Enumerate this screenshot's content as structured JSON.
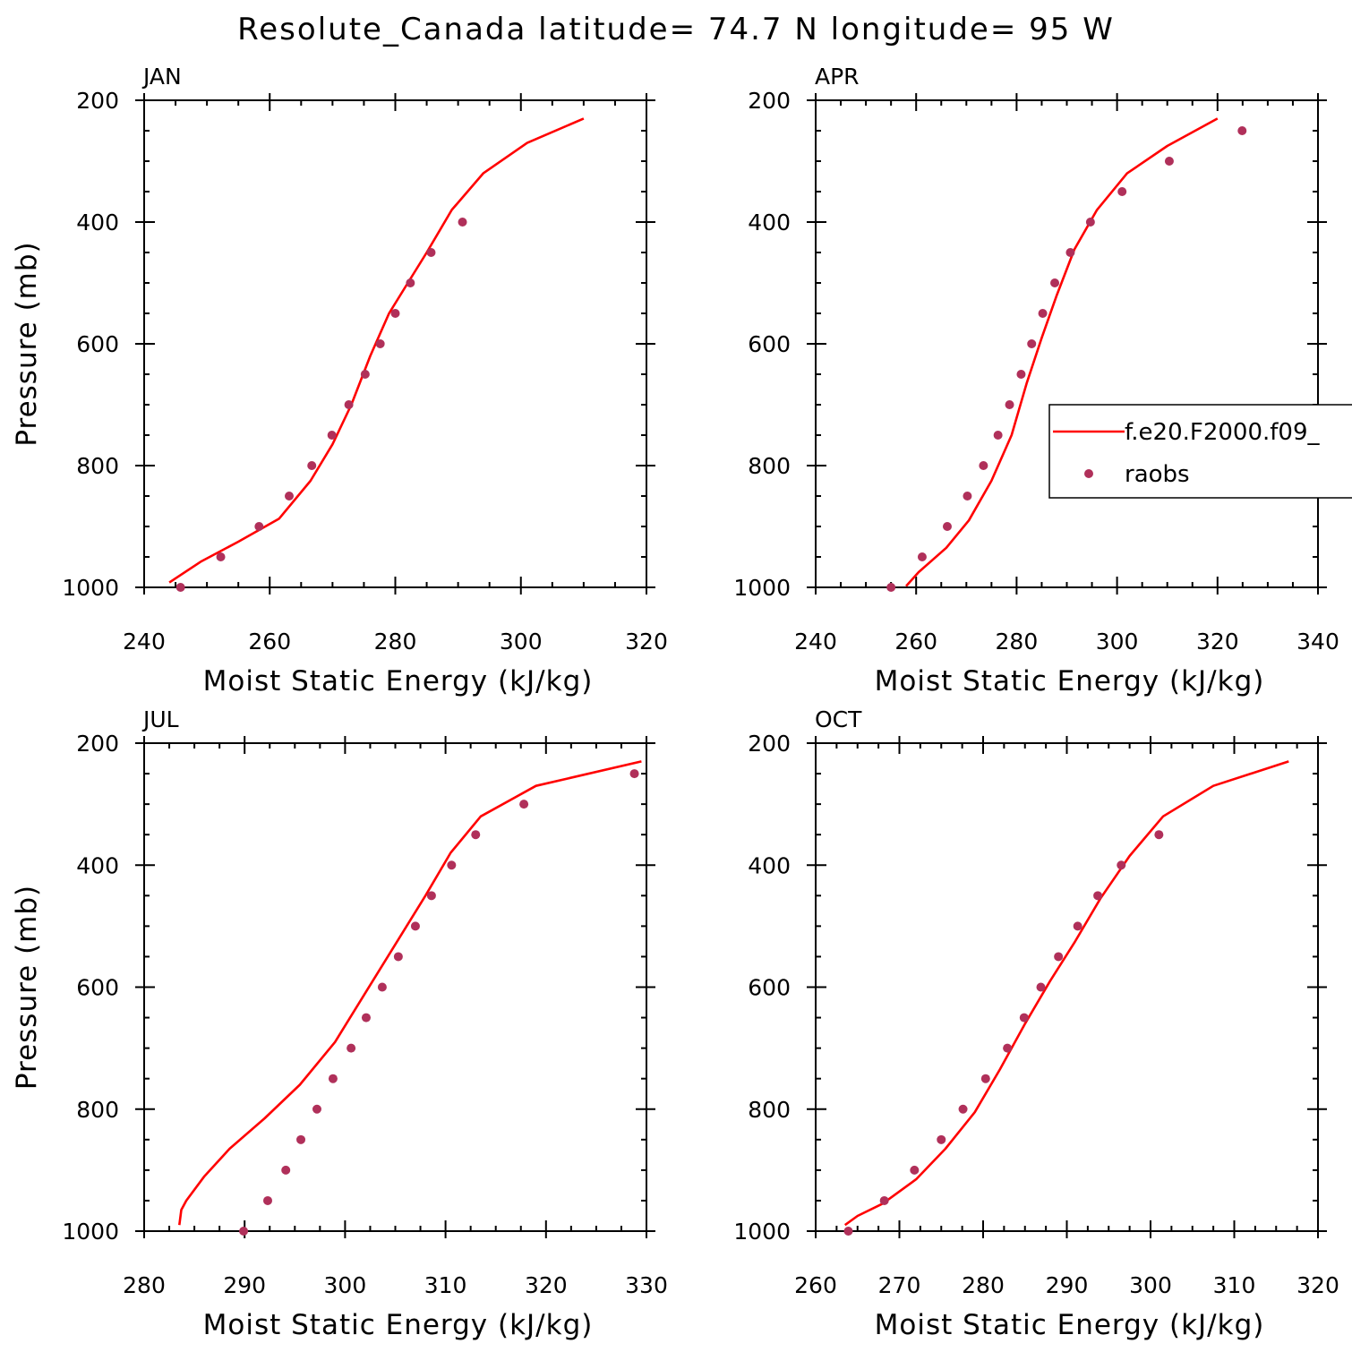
{
  "title": "Resolute_Canada  latitude= 74.7 N longitude= 95 W",
  "legend": {
    "model_label": "f.e20.F2000.f09_",
    "obs_label": "raobs",
    "placement": "right-middle of APR panel"
  },
  "colors": {
    "model_line": "#ff0000",
    "obs_marker": "#b0305a",
    "axes": "#000000"
  },
  "chart_data": [
    {
      "type": "line",
      "month": "JAN",
      "xlabel": "Moist Static Energy (kJ/kg)",
      "ylabel": "Pressure (mb)",
      "xlim": [
        240,
        320
      ],
      "ylim": [
        1000,
        200
      ],
      "xticks": [
        240,
        260,
        280,
        300,
        320
      ],
      "yticks": [
        200,
        400,
        600,
        800,
        1000
      ],
      "y_inverted": true,
      "series": [
        {
          "name": "f.e20.F2000.f09_",
          "style": "line",
          "x": [
            244.0,
            249.0,
            255.0,
            261.5,
            266.5,
            270.0,
            273.0,
            276.0,
            279.0,
            282.0,
            285.0,
            289.0,
            294.0,
            301.0,
            310.0
          ],
          "y": [
            992,
            958,
            925,
            887,
            825,
            765,
            700,
            620,
            550,
            500,
            450,
            380,
            320,
            270,
            230
          ]
        },
        {
          "name": "raobs",
          "style": "markers",
          "x": [
            245.8,
            252.2,
            258.3,
            263.1,
            266.7,
            269.9,
            272.6,
            275.2,
            277.6,
            280.0,
            282.4,
            285.7,
            290.7
          ],
          "y": [
            1000,
            950,
            900,
            850,
            800,
            750,
            700,
            650,
            600,
            550,
            500,
            450,
            400
          ]
        }
      ]
    },
    {
      "type": "line",
      "month": "APR",
      "xlabel": "Moist Static Energy (kJ/kg)",
      "ylabel": "",
      "xlim": [
        240,
        340
      ],
      "ylim": [
        1000,
        200
      ],
      "xticks": [
        240,
        260,
        280,
        300,
        320,
        340
      ],
      "yticks": [
        200,
        400,
        600,
        800,
        1000
      ],
      "y_inverted": true,
      "series": [
        {
          "name": "f.e20.F2000.f09_",
          "style": "line",
          "x": [
            258.0,
            260.5,
            266.0,
            270.5,
            275.0,
            279.0,
            282.0,
            285.0,
            288.0,
            291.5,
            296.0,
            302.0,
            310.0,
            320.0
          ],
          "y": [
            998,
            975,
            935,
            890,
            825,
            750,
            665,
            590,
            520,
            445,
            380,
            320,
            275,
            230
          ]
        },
        {
          "name": "raobs",
          "style": "markers",
          "x": [
            255.0,
            261.2,
            266.2,
            270.2,
            273.4,
            276.3,
            278.6,
            280.9,
            283.0,
            285.2,
            287.6,
            290.7,
            294.7,
            301.0,
            310.4,
            324.9
          ],
          "y": [
            1000,
            950,
            900,
            850,
            800,
            750,
            700,
            650,
            600,
            550,
            500,
            450,
            400,
            350,
            300,
            250
          ]
        }
      ]
    },
    {
      "type": "line",
      "month": "JUL",
      "xlabel": "Moist Static Energy (kJ/kg)",
      "ylabel": "Pressure (mb)",
      "xlim": [
        280,
        330
      ],
      "ylim": [
        1000,
        200
      ],
      "xticks": [
        280,
        290,
        300,
        310,
        320,
        330
      ],
      "yticks": [
        200,
        400,
        600,
        800,
        1000
      ],
      "y_inverted": true,
      "series": [
        {
          "name": "f.e20.F2000.f09_",
          "style": "line",
          "x": [
            283.5,
            283.7,
            284.2,
            286.0,
            288.5,
            292.0,
            295.5,
            299.0,
            302.0,
            305.0,
            308.0,
            310.5,
            313.5,
            319.0,
            329.5
          ],
          "y": [
            990,
            965,
            950,
            910,
            865,
            815,
            760,
            690,
            610,
            530,
            450,
            380,
            320,
            270,
            230
          ]
        },
        {
          "name": "raobs",
          "style": "markers",
          "x": [
            289.9,
            292.3,
            294.1,
            295.6,
            297.2,
            298.8,
            300.6,
            302.1,
            303.7,
            305.3,
            307.0,
            308.6,
            310.6,
            313.0,
            317.8,
            328.8
          ],
          "y": [
            1000,
            950,
            900,
            850,
            800,
            750,
            700,
            650,
            600,
            550,
            500,
            450,
            400,
            350,
            300,
            250
          ]
        }
      ]
    },
    {
      "type": "line",
      "month": "OCT",
      "xlabel": "Moist Static Energy (kJ/kg)",
      "ylabel": "",
      "xlim": [
        260,
        320
      ],
      "ylim": [
        1000,
        200
      ],
      "xticks": [
        260,
        270,
        280,
        290,
        300,
        310,
        320
      ],
      "yticks": [
        200,
        400,
        600,
        800,
        1000
      ],
      "y_inverted": true,
      "series": [
        {
          "name": "f.e20.F2000.f09_",
          "style": "line",
          "x": [
            263.5,
            265.0,
            268.0,
            272.0,
            275.5,
            279.0,
            282.0,
            285.0,
            288.0,
            291.0,
            294.0,
            297.5,
            301.5,
            307.5,
            316.5
          ],
          "y": [
            990,
            975,
            955,
            915,
            865,
            805,
            735,
            660,
            590,
            525,
            455,
            385,
            320,
            270,
            230
          ]
        },
        {
          "name": "raobs",
          "style": "markers",
          "x": [
            263.9,
            268.2,
            271.8,
            275.0,
            277.6,
            280.3,
            282.9,
            284.9,
            286.9,
            289.0,
            291.3,
            293.7,
            296.5,
            301.0
          ],
          "y": [
            1000,
            950,
            900,
            850,
            800,
            750,
            700,
            650,
            600,
            550,
            500,
            450,
            400,
            350
          ]
        }
      ]
    }
  ]
}
